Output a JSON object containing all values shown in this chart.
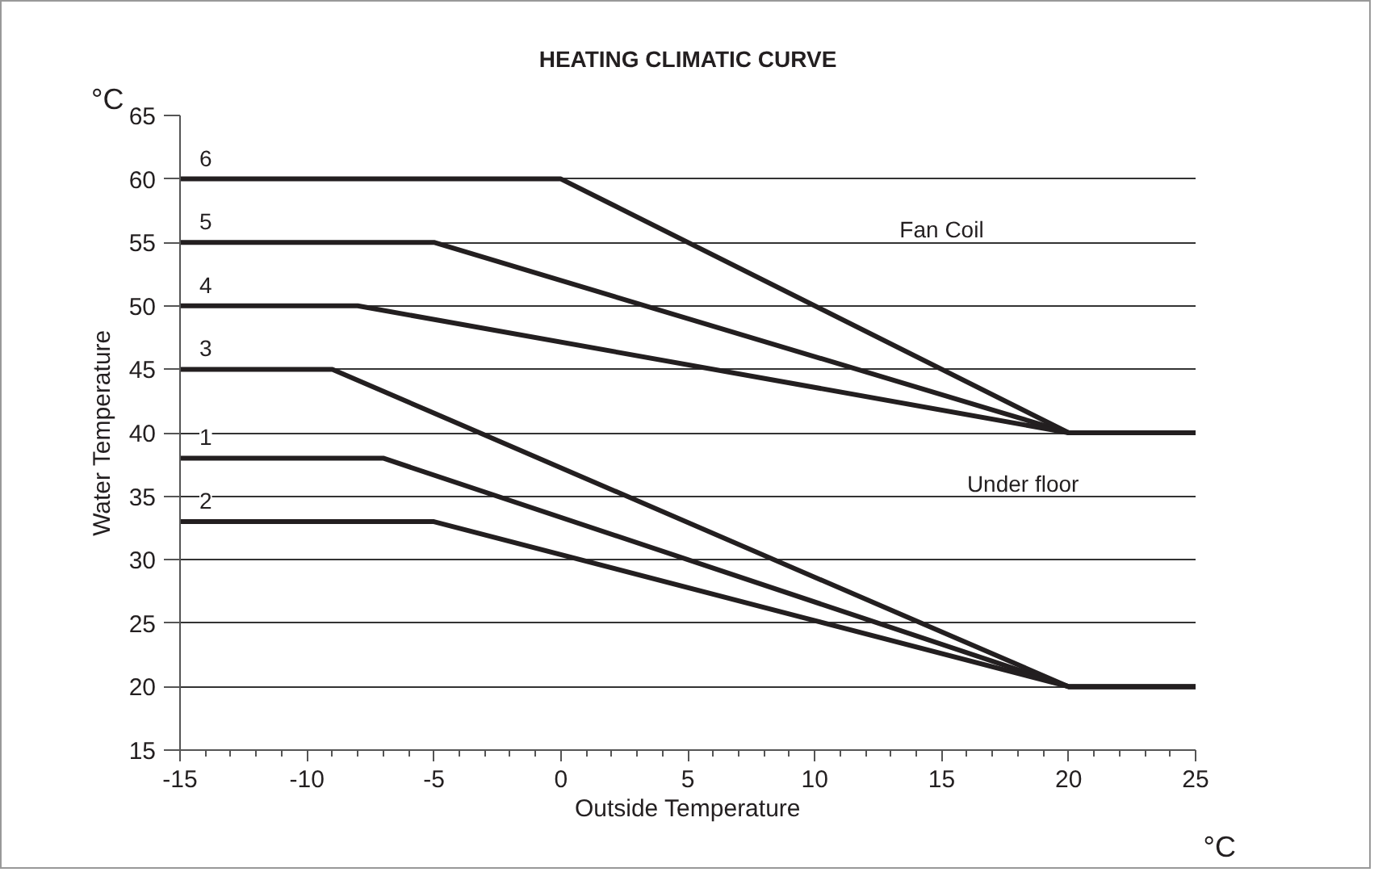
{
  "chart_data": {
    "type": "line",
    "title": "HEATING CLIMATIC CURVE",
    "xlabel": "Outside Temperature",
    "ylabel": "Water Temperature",
    "series": [
      {
        "name": "6",
        "color": "#231f20",
        "x": [
          -15,
          0,
          20,
          25
        ],
        "values": [
          60,
          60,
          40,
          40
        ]
      },
      {
        "name": "5",
        "color": "#231f20",
        "x": [
          -15,
          -5,
          20,
          25
        ],
        "values": [
          55,
          55,
          40,
          40
        ]
      },
      {
        "name": "4",
        "color": "#231f20",
        "x": [
          -15,
          -8,
          20,
          25
        ],
        "values": [
          50,
          50,
          40,
          40
        ]
      },
      {
        "name": "3",
        "color": "#231f20",
        "x": [
          -15,
          -9,
          20,
          25
        ],
        "values": [
          45,
          45,
          20,
          20
        ]
      },
      {
        "name": "1",
        "color": "#231f20",
        "x": [
          -15,
          -7,
          20,
          25
        ],
        "values": [
          38,
          38,
          20,
          20
        ]
      },
      {
        "name": "2",
        "color": "#231f20",
        "x": [
          -15,
          -5,
          20,
          25
        ],
        "values": [
          33,
          33,
          20,
          20
        ]
      }
    ],
    "annotations": [
      "°C",
      "°C",
      "Fan Coil",
      "Under floor"
    ],
    "xlim": [
      -15,
      25
    ],
    "ylim": [
      15,
      65
    ],
    "xticks": [
      -15,
      -10,
      -5,
      0,
      5,
      10,
      15,
      20,
      25
    ],
    "yticks": [
      15,
      20,
      25,
      30,
      35,
      40,
      45,
      50,
      55,
      60,
      65
    ],
    "grid": "y",
    "marker": "none",
    "line_style": "solid"
  }
}
